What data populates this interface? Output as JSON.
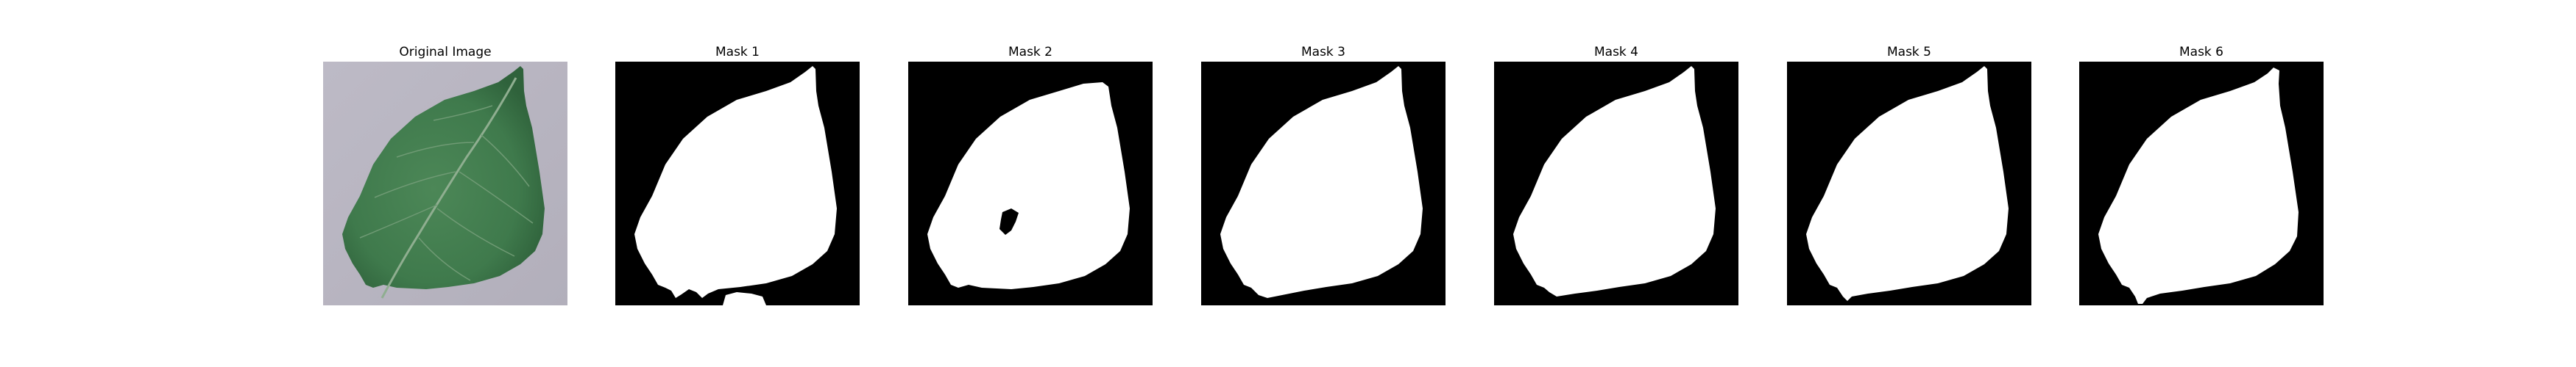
{
  "figure": {
    "panels": [
      {
        "title": "Original Image",
        "kind": "photo"
      },
      {
        "title": "Mask 1",
        "kind": "mask"
      },
      {
        "title": "Mask 2",
        "kind": "mask"
      },
      {
        "title": "Mask 3",
        "kind": "mask"
      },
      {
        "title": "Mask 4",
        "kind": "mask"
      },
      {
        "title": "Mask 5",
        "kind": "mask"
      },
      {
        "title": "Mask 6",
        "kind": "mask"
      }
    ]
  },
  "colors": {
    "background": "#ffffff",
    "mask_background": "#000000",
    "mask_foreground": "#ffffff",
    "photo_background": "#b9b6c2",
    "leaf_main": "#3f7a4c",
    "leaf_dark": "#2e5f3a",
    "vein": "#8fae90"
  }
}
